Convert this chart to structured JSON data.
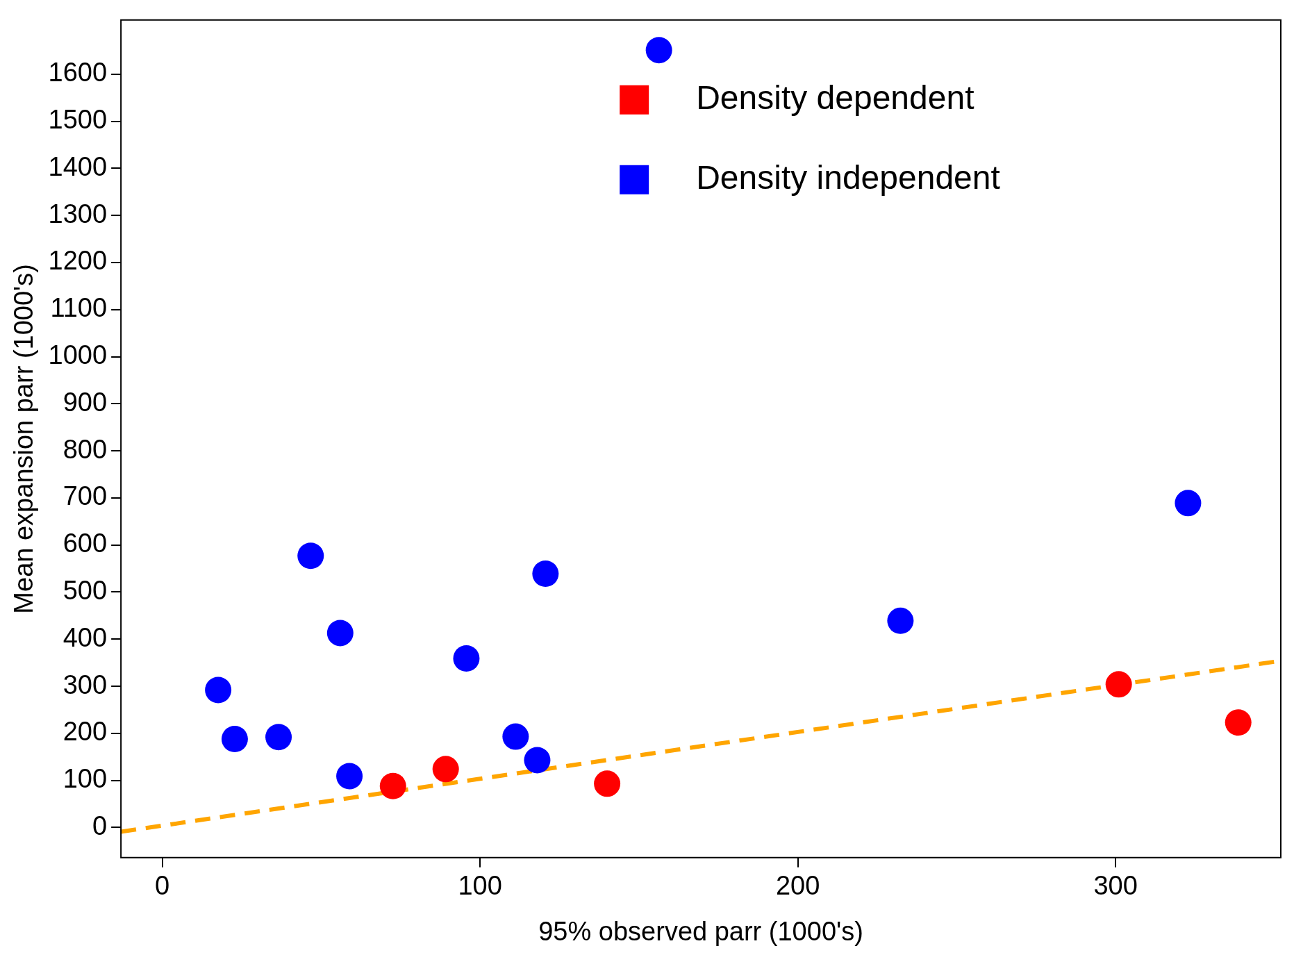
{
  "chart_data": {
    "type": "scatter",
    "xlabel": "95% observed parr (1000's)",
    "ylabel": "Mean expansion parr (1000's)",
    "xlim": [
      -13,
      352
    ],
    "ylim": [
      -64,
      1715
    ],
    "xticks": [
      0,
      100,
      200,
      300
    ],
    "yticks": [
      0,
      100,
      200,
      300,
      400,
      500,
      600,
      700,
      800,
      900,
      1000,
      1100,
      1200,
      1300,
      1400,
      1500,
      1600
    ],
    "grid": false,
    "legend": "top",
    "marker": "circle",
    "series": [
      {
        "name": "Density dependent",
        "color": "#ff0000",
        "x": [
          72.6,
          89.2,
          140,
          301,
          338.6
        ],
        "values": [
          88,
          124,
          93,
          304,
          223
        ]
      },
      {
        "name": "Density independent",
        "color": "#0000ff",
        "x": [
          17.6,
          22.8,
          36.6,
          46.7,
          56,
          58.9,
          95.7,
          111.2,
          118,
          120.6,
          156.3,
          232.3,
          322.8
        ],
        "values": [
          292,
          188,
          192,
          577,
          413,
          109,
          359,
          193,
          143,
          539,
          1651,
          439,
          689
        ]
      },
      {
        "type": "line",
        "color": "#ffa500",
        "line_style": "dashed",
        "marker": "none",
        "x": [
          -13,
          352
        ],
        "values": [
          -9,
          354
        ]
      }
    ]
  }
}
